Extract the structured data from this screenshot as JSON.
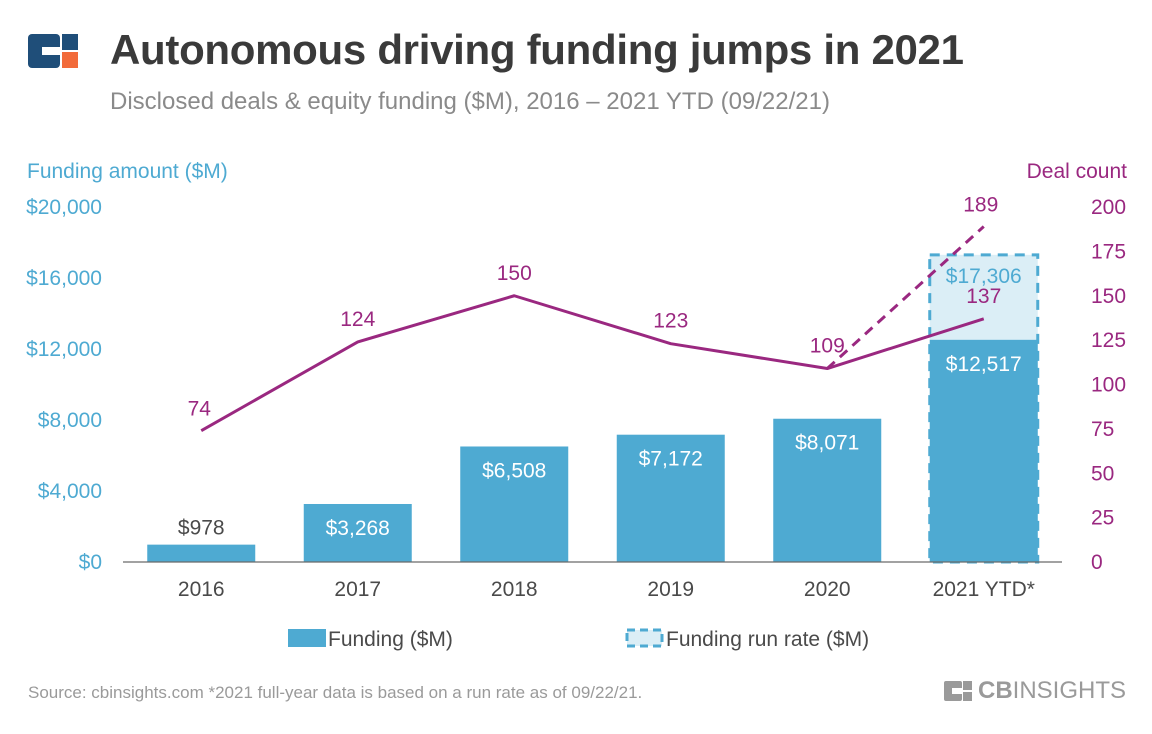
{
  "header": {
    "title": "Autonomous driving funding jumps in 2021",
    "subtitle": "Disclosed deals & equity funding ($M), 2016 – 2021 YTD (09/22/21)",
    "logo_icon": "cb-insights-logo-icon"
  },
  "footer": {
    "source": "Source: cbinsights.com  *2021 full-year data is based on a run rate as of 09/22/21.",
    "brand_prefix": "CB",
    "brand_suffix": "INSIGHTS"
  },
  "colors": {
    "bar": "#4eaad2",
    "run_rate_fill": "#dbeef6",
    "run_rate_stroke": "#4eaad2",
    "line": "#9a2880",
    "left_axis": "#4eaad2",
    "right_axis": "#9a2880",
    "text": "#4a4a4a",
    "logo_blue": "#1f4e79",
    "logo_orange": "#f26b3a"
  },
  "chart_data": {
    "type": "bar",
    "categories": [
      "2016",
      "2017",
      "2018",
      "2019",
      "2020",
      "2021 YTD*"
    ],
    "left_axis": {
      "label": "Funding amount ($M)",
      "min": 0,
      "max": 20000,
      "ticks": [
        0,
        4000,
        8000,
        12000,
        16000,
        20000
      ],
      "tick_labels": [
        "$0",
        "$4,000",
        "$8,000",
        "$12,000",
        "$16,000",
        "$20,000"
      ]
    },
    "right_axis": {
      "label": "Deal count",
      "min": 0,
      "max": 200,
      "ticks": [
        0,
        25,
        50,
        75,
        100,
        125,
        150,
        175,
        200
      ],
      "tick_labels": [
        "0",
        "25",
        "50",
        "75",
        "100",
        "125",
        "150",
        "175",
        "200"
      ]
    },
    "series": [
      {
        "name": "Funding ($M)",
        "type": "bar",
        "axis": "left",
        "values": [
          978,
          3268,
          6508,
          7172,
          8071,
          12517
        ],
        "labels": [
          "$978",
          "$3,268",
          "$6,508",
          "$7,172",
          "$8,071",
          "$12,517"
        ]
      },
      {
        "name": "Funding run rate ($M)",
        "type": "bar-dashed",
        "axis": "left",
        "category": "2021 YTD*",
        "value": 17306,
        "label": "$17,306"
      },
      {
        "name": "Deal count",
        "type": "line",
        "axis": "right",
        "values": [
          74,
          124,
          150,
          123,
          109,
          137
        ],
        "labels": [
          "74",
          "124",
          "150",
          "123",
          "109",
          "137"
        ]
      },
      {
        "name": "Deal count run rate",
        "type": "line-dashed",
        "axis": "right",
        "from": {
          "category": "2020",
          "value": 109
        },
        "to": {
          "category": "2021 YTD*",
          "value": 189
        },
        "label": "189"
      }
    ],
    "legend": {
      "placement": "bottom",
      "items": [
        "Funding ($M)",
        "Funding run rate ($M)"
      ]
    },
    "grid": false
  }
}
